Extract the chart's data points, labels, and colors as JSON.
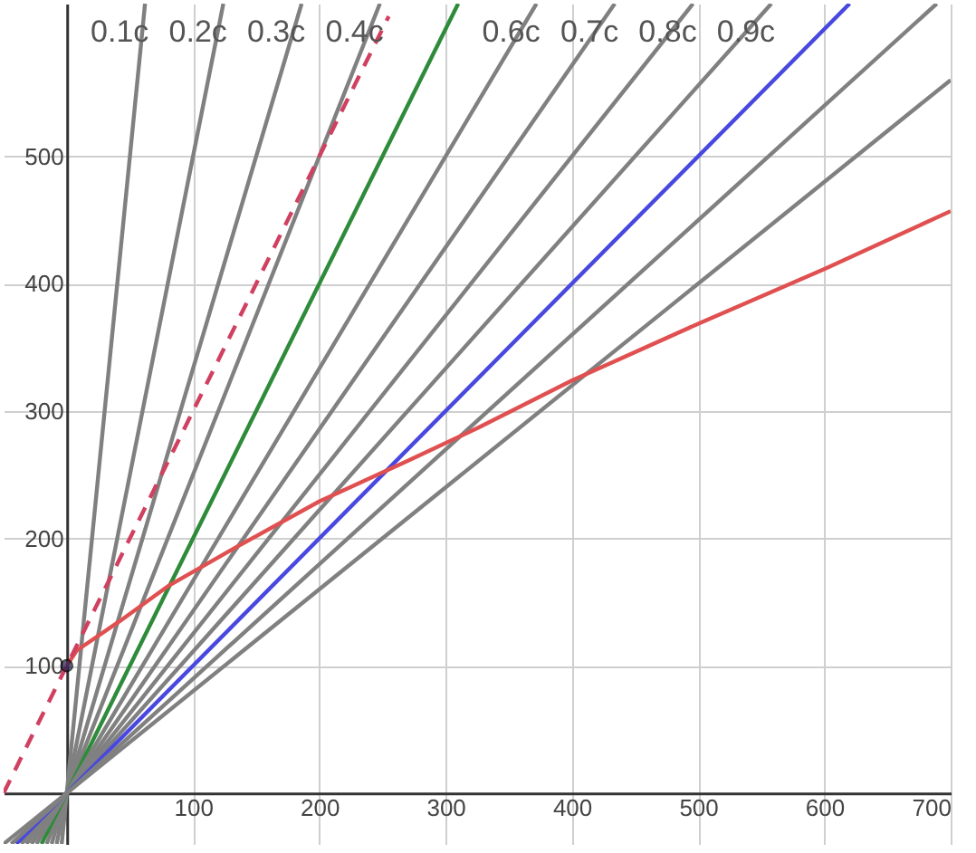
{
  "chart_data": {
    "type": "line",
    "xlim": [
      -50,
      700
    ],
    "ylim": [
      -40,
      620
    ],
    "xticks": [
      100,
      200,
      300,
      400,
      500,
      600,
      700
    ],
    "yticks": [
      100,
      200,
      300,
      400,
      500
    ],
    "grid": true,
    "line_style": "solid",
    "series": [
      {
        "name": "0.1c",
        "color": "#808080",
        "x": [
          -4,
          62
        ],
        "values": [
          -40,
          620
        ]
      },
      {
        "name": "0.2c",
        "color": "#808080",
        "x": [
          -8,
          124
        ],
        "values": [
          -40,
          620
        ]
      },
      {
        "name": "0.3c",
        "color": "#808080",
        "x": [
          -12,
          186
        ],
        "values": [
          -40,
          620
        ]
      },
      {
        "name": "0.4c",
        "color": "#808080",
        "x": [
          -16,
          248
        ],
        "values": [
          -40,
          620
        ]
      },
      {
        "color": "#2e8b3a",
        "x": [
          -20,
          310
        ],
        "values": [
          -40,
          620
        ]
      },
      {
        "name": "0.6c",
        "color": "#808080",
        "x": [
          -24,
          372
        ],
        "values": [
          -40,
          620
        ]
      },
      {
        "name": "0.7c",
        "color": "#808080",
        "x": [
          -28,
          434
        ],
        "values": [
          -40,
          620
        ]
      },
      {
        "name": "0.8c",
        "color": "#808080",
        "x": [
          -32,
          496
        ],
        "values": [
          -40,
          620
        ]
      },
      {
        "name": "0.9c",
        "color": "#808080",
        "x": [
          -36,
          558
        ],
        "values": [
          -40,
          620
        ]
      },
      {
        "color": "#4848e0",
        "x": [
          -40,
          620
        ],
        "values": [
          -40,
          620
        ]
      },
      {
        "color": "#808080",
        "x": [
          -44,
          689
        ],
        "values": [
          -40,
          620
        ]
      },
      {
        "color": "#808080",
        "x": [
          -50,
          700
        ],
        "values": [
          -40,
          560
        ]
      },
      {
        "color": "#e05050",
        "x": [
          0,
          8,
          42,
          81,
          134,
          200,
          266,
          326,
          400,
          501,
          601,
          700
        ],
        "values": [
          100,
          112,
          135,
          163,
          193,
          229,
          259,
          287,
          324,
          369,
          412,
          457
        ]
      },
      {
        "color": "#d04060",
        "line_style": "dashed",
        "x": [
          -50,
          0,
          255
        ],
        "values": [
          0,
          100,
          610
        ]
      },
      {
        "type": "scatter",
        "marker": "circle",
        "color": "#1e1e50",
        "x": [
          0
        ],
        "values": [
          100
        ]
      }
    ]
  }
}
